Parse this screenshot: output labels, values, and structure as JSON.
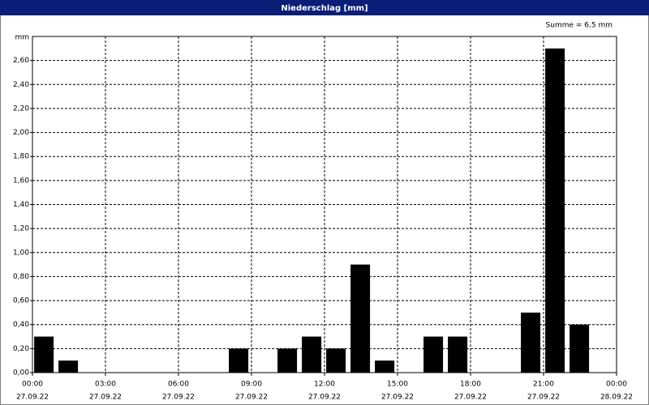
{
  "chart_data": {
    "type": "bar",
    "title": "Niederschlag [mm]",
    "annotation": "Summe = 6,5 mm",
    "y_label": "mm",
    "x": [
      0,
      1,
      8,
      10,
      11,
      12,
      13,
      14,
      16,
      17,
      20,
      21,
      22
    ],
    "values": [
      0.3,
      0.1,
      0.2,
      0.2,
      0.3,
      0.2,
      0.9,
      0.1,
      0.3,
      0.3,
      0.5,
      2.7,
      0.4
    ],
    "color": "#000000",
    "xlim": [
      0,
      24
    ],
    "xticks": [
      {
        "value": 0,
        "label": "00:00",
        "date": "27.09.22"
      },
      {
        "value": 3,
        "label": "03:00",
        "date": "27.09.22"
      },
      {
        "value": 6,
        "label": "06:00",
        "date": "27.09.22"
      },
      {
        "value": 9,
        "label": "09:00",
        "date": "27.09.22"
      },
      {
        "value": 12,
        "label": "12:00",
        "date": "27.09.22"
      },
      {
        "value": 15,
        "label": "15:00",
        "date": "27.09.22"
      },
      {
        "value": 18,
        "label": "18:00",
        "date": "27.09.22"
      },
      {
        "value": 21,
        "label": "21:00",
        "date": "27.09.22"
      },
      {
        "value": 24,
        "label": "00:00",
        "date": "28.09.22"
      }
    ],
    "ylim": [
      0,
      2.8
    ],
    "yticks": [
      {
        "value": 0,
        "label": "0,00"
      },
      {
        "value": 0.2,
        "label": "0,20"
      },
      {
        "value": 0.4,
        "label": "0,40"
      },
      {
        "value": 0.6,
        "label": "0,60"
      },
      {
        "value": 0.8,
        "label": "0,80"
      },
      {
        "value": 1.0,
        "label": "1,00"
      },
      {
        "value": 1.2,
        "label": "1,20"
      },
      {
        "value": 1.4,
        "label": "1,40"
      },
      {
        "value": 1.6,
        "label": "1,60"
      },
      {
        "value": 1.8,
        "label": "1,80"
      },
      {
        "value": 2.0,
        "label": "2,00"
      },
      {
        "value": 2.2,
        "label": "2,20"
      },
      {
        "value": 2.4,
        "label": "2,40"
      },
      {
        "value": 2.6,
        "label": "2,60"
      }
    ],
    "grid": true
  }
}
